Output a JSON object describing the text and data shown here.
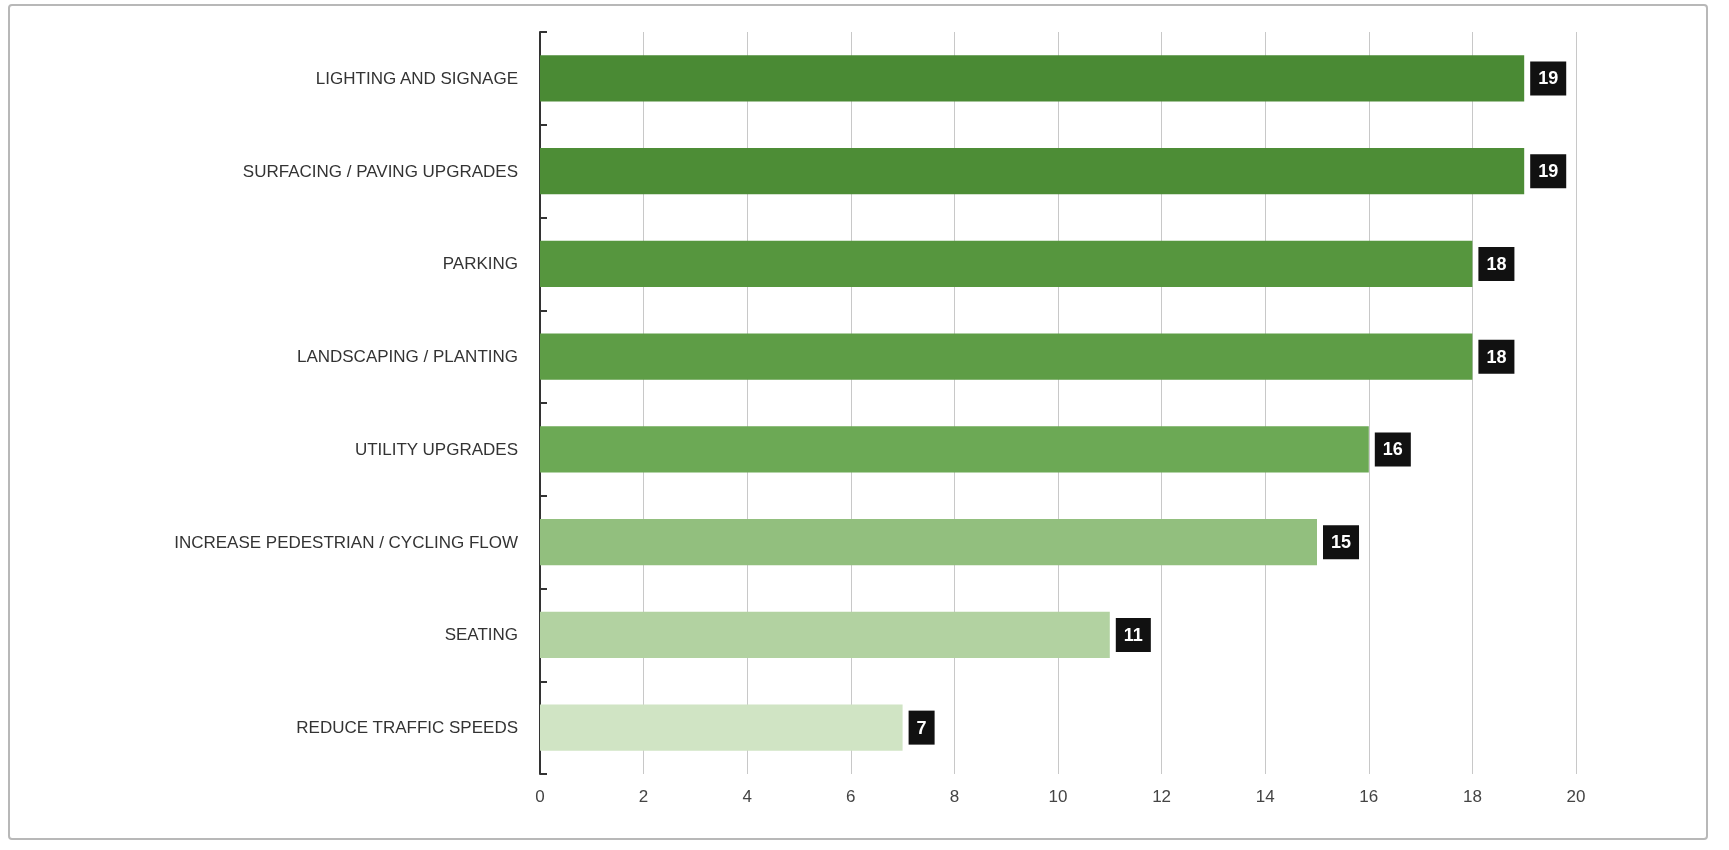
{
  "chart_data": {
    "type": "bar",
    "orientation": "horizontal",
    "categories": [
      "LIGHTING AND SIGNAGE",
      "SURFACING / PAVING UPGRADES",
      "PARKING",
      "LANDSCAPING / PLANTING",
      "UTILITY UPGRADES",
      "INCREASE PEDESTRIAN / CYCLING FLOW",
      "SEATING",
      "REDUCE TRAFFIC SPEEDS"
    ],
    "values": [
      19,
      19,
      18,
      18,
      16,
      15,
      11,
      7
    ],
    "colors": [
      "#4a8a34",
      "#4d8d36",
      "#56963e",
      "#5e9d46",
      "#6ca955",
      "#92bf7e",
      "#b2d2a1",
      "#d0e4c4"
    ],
    "xlim": [
      0,
      20
    ],
    "xticks": [
      0,
      2,
      4,
      6,
      8,
      10,
      12,
      14,
      16,
      18,
      20
    ],
    "grid": "x",
    "data_labels": true
  }
}
